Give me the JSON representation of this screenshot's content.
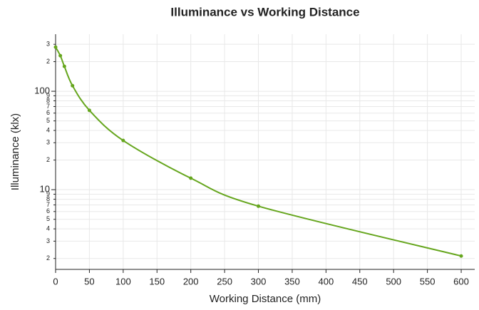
{
  "chart_data": {
    "type": "line",
    "title": "Illuminance vs Working Distance",
    "xlabel": "Working Distance (mm)",
    "ylabel": "Illuminance (klx)",
    "x": [
      0,
      7,
      13,
      25,
      50,
      100,
      200,
      300,
      600
    ],
    "series": [
      {
        "name": "Illuminance",
        "color": "#66a61e",
        "values": [
          281,
          230,
          179,
          114,
          64,
          31.6,
          13.1,
          6.8,
          2.12
        ]
      }
    ],
    "xlim": [
      0,
      620
    ],
    "xticks": [
      0,
      50,
      100,
      150,
      200,
      250,
      300,
      350,
      400,
      450,
      500,
      550,
      600
    ],
    "ylim": [
      1.55,
      380
    ],
    "ylog": true,
    "yticks": [
      2,
      3,
      4,
      5,
      6,
      7,
      8,
      9,
      10,
      {
        "value": 20,
        "label": "2"
      },
      {
        "value": 30,
        "label": "3"
      },
      {
        "value": 40,
        "label": "4"
      },
      {
        "value": 50,
        "label": "5"
      },
      {
        "value": 60,
        "label": "6"
      },
      {
        "value": 70,
        "label": "7"
      },
      {
        "value": 80,
        "label": "8"
      },
      {
        "value": 90,
        "label": "9"
      },
      100,
      {
        "value": 200,
        "label": "2"
      },
      {
        "value": 300,
        "label": "3"
      }
    ],
    "grid": true
  }
}
